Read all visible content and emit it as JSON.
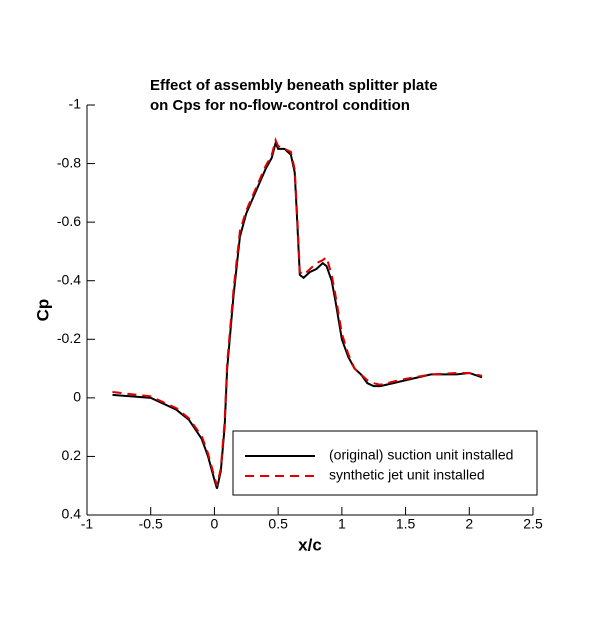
{
  "chart_data": {
    "type": "line",
    "title": [
      "Effect of assembly beneath splitter plate",
      "on Cps for no-flow-control condition"
    ],
    "x_label": "x/c",
    "y_label": "Cp",
    "x": [
      -0.8,
      -0.5,
      -0.3,
      -0.2,
      -0.1,
      -0.05,
      0,
      0.02,
      0.05,
      0.08,
      0.1,
      0.15,
      0.2,
      0.25,
      0.3,
      0.35,
      0.4,
      0.45,
      0.48,
      0.5,
      0.55,
      0.6,
      0.63,
      0.65,
      0.67,
      0.7,
      0.75,
      0.8,
      0.85,
      0.88,
      0.92,
      0.95,
      1.0,
      1.05,
      1.1,
      1.15,
      1.2,
      1.25,
      1.3,
      1.4,
      1.5,
      1.7,
      1.9,
      2.0,
      2.1
    ],
    "series": [
      {
        "name": "(original) suction unit installed",
        "color": "#000000",
        "dash": false,
        "values": [
          -0.01,
          0.0,
          0.04,
          0.075,
          0.14,
          0.2,
          0.28,
          0.31,
          0.25,
          0.1,
          -0.1,
          -0.35,
          -0.55,
          -0.63,
          -0.68,
          -0.73,
          -0.78,
          -0.82,
          -0.87,
          -0.85,
          -0.85,
          -0.83,
          -0.77,
          -0.6,
          -0.42,
          -0.41,
          -0.43,
          -0.44,
          -0.46,
          -0.45,
          -0.4,
          -0.33,
          -0.2,
          -0.14,
          -0.1,
          -0.08,
          -0.05,
          -0.04,
          -0.04,
          -0.05,
          -0.06,
          -0.08,
          -0.08,
          -0.085,
          -0.07
        ]
      },
      {
        "name": "synthetic jet unit installed",
        "color": "#dd0000",
        "dash": true,
        "values": [
          -0.02,
          -0.005,
          0.035,
          0.07,
          0.13,
          0.19,
          0.27,
          0.3,
          0.24,
          0.08,
          -0.12,
          -0.37,
          -0.57,
          -0.64,
          -0.69,
          -0.74,
          -0.79,
          -0.83,
          -0.88,
          -0.86,
          -0.85,
          -0.84,
          -0.78,
          -0.62,
          -0.43,
          -0.42,
          -0.44,
          -0.46,
          -0.47,
          -0.48,
          -0.42,
          -0.35,
          -0.22,
          -0.15,
          -0.1,
          -0.08,
          -0.06,
          -0.05,
          -0.045,
          -0.055,
          -0.065,
          -0.08,
          -0.085,
          -0.085,
          -0.075
        ]
      }
    ],
    "xlim": [
      -1,
      2.5
    ],
    "xticks": [
      -1,
      -0.5,
      0,
      0.5,
      1,
      1.5,
      2,
      2.5
    ],
    "ylim": [
      -1,
      0.4
    ],
    "yticks": [
      -1,
      -0.8,
      -0.6,
      -0.4,
      -0.2,
      0,
      0.2,
      0.4
    ],
    "y_reversed": true,
    "legend": "lower right"
  }
}
